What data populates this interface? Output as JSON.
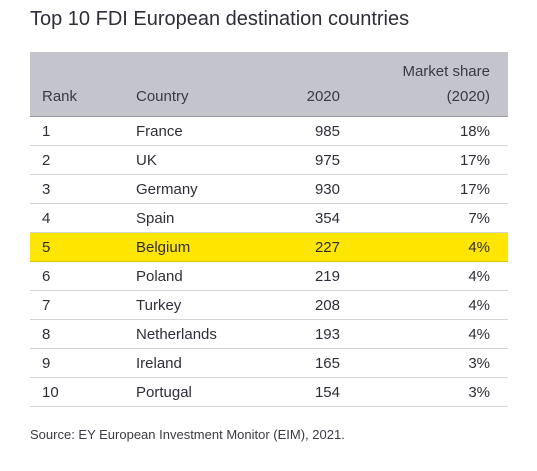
{
  "title": "Top 10 FDI European destination countries",
  "source": "Source: EY European Investment Monitor (EIM), 2021.",
  "colors": {
    "header_bg": "#c4c4cd",
    "highlight": "#ffe600"
  },
  "chart_data": {
    "type": "table",
    "title": "Top 10 FDI European destination countries",
    "columns": [
      "Rank",
      "Country",
      "2020",
      "Market share",
      "(2020)"
    ],
    "rows": [
      {
        "rank": "1",
        "country": "France",
        "value": "985",
        "share": "18%",
        "highlight": false
      },
      {
        "rank": "2",
        "country": "UK",
        "value": "975",
        "share": "17%",
        "highlight": false
      },
      {
        "rank": "3",
        "country": "Germany",
        "value": "930",
        "share": "17%",
        "highlight": false
      },
      {
        "rank": "4",
        "country": "Spain",
        "value": "354",
        "share": "7%",
        "highlight": false
      },
      {
        "rank": "5",
        "country": "Belgium",
        "value": "227",
        "share": "4%",
        "highlight": true
      },
      {
        "rank": "6",
        "country": "Poland",
        "value": "219",
        "share": "4%",
        "highlight": false
      },
      {
        "rank": "7",
        "country": "Turkey",
        "value": "208",
        "share": "4%",
        "highlight": false
      },
      {
        "rank": "8",
        "country": "Netherlands",
        "value": "193",
        "share": "4%",
        "highlight": false
      },
      {
        "rank": "9",
        "country": "Ireland",
        "value": "165",
        "share": "3%",
        "highlight": false
      },
      {
        "rank": "10",
        "country": "Portugal",
        "value": "154",
        "share": "3%",
        "highlight": false
      }
    ]
  }
}
